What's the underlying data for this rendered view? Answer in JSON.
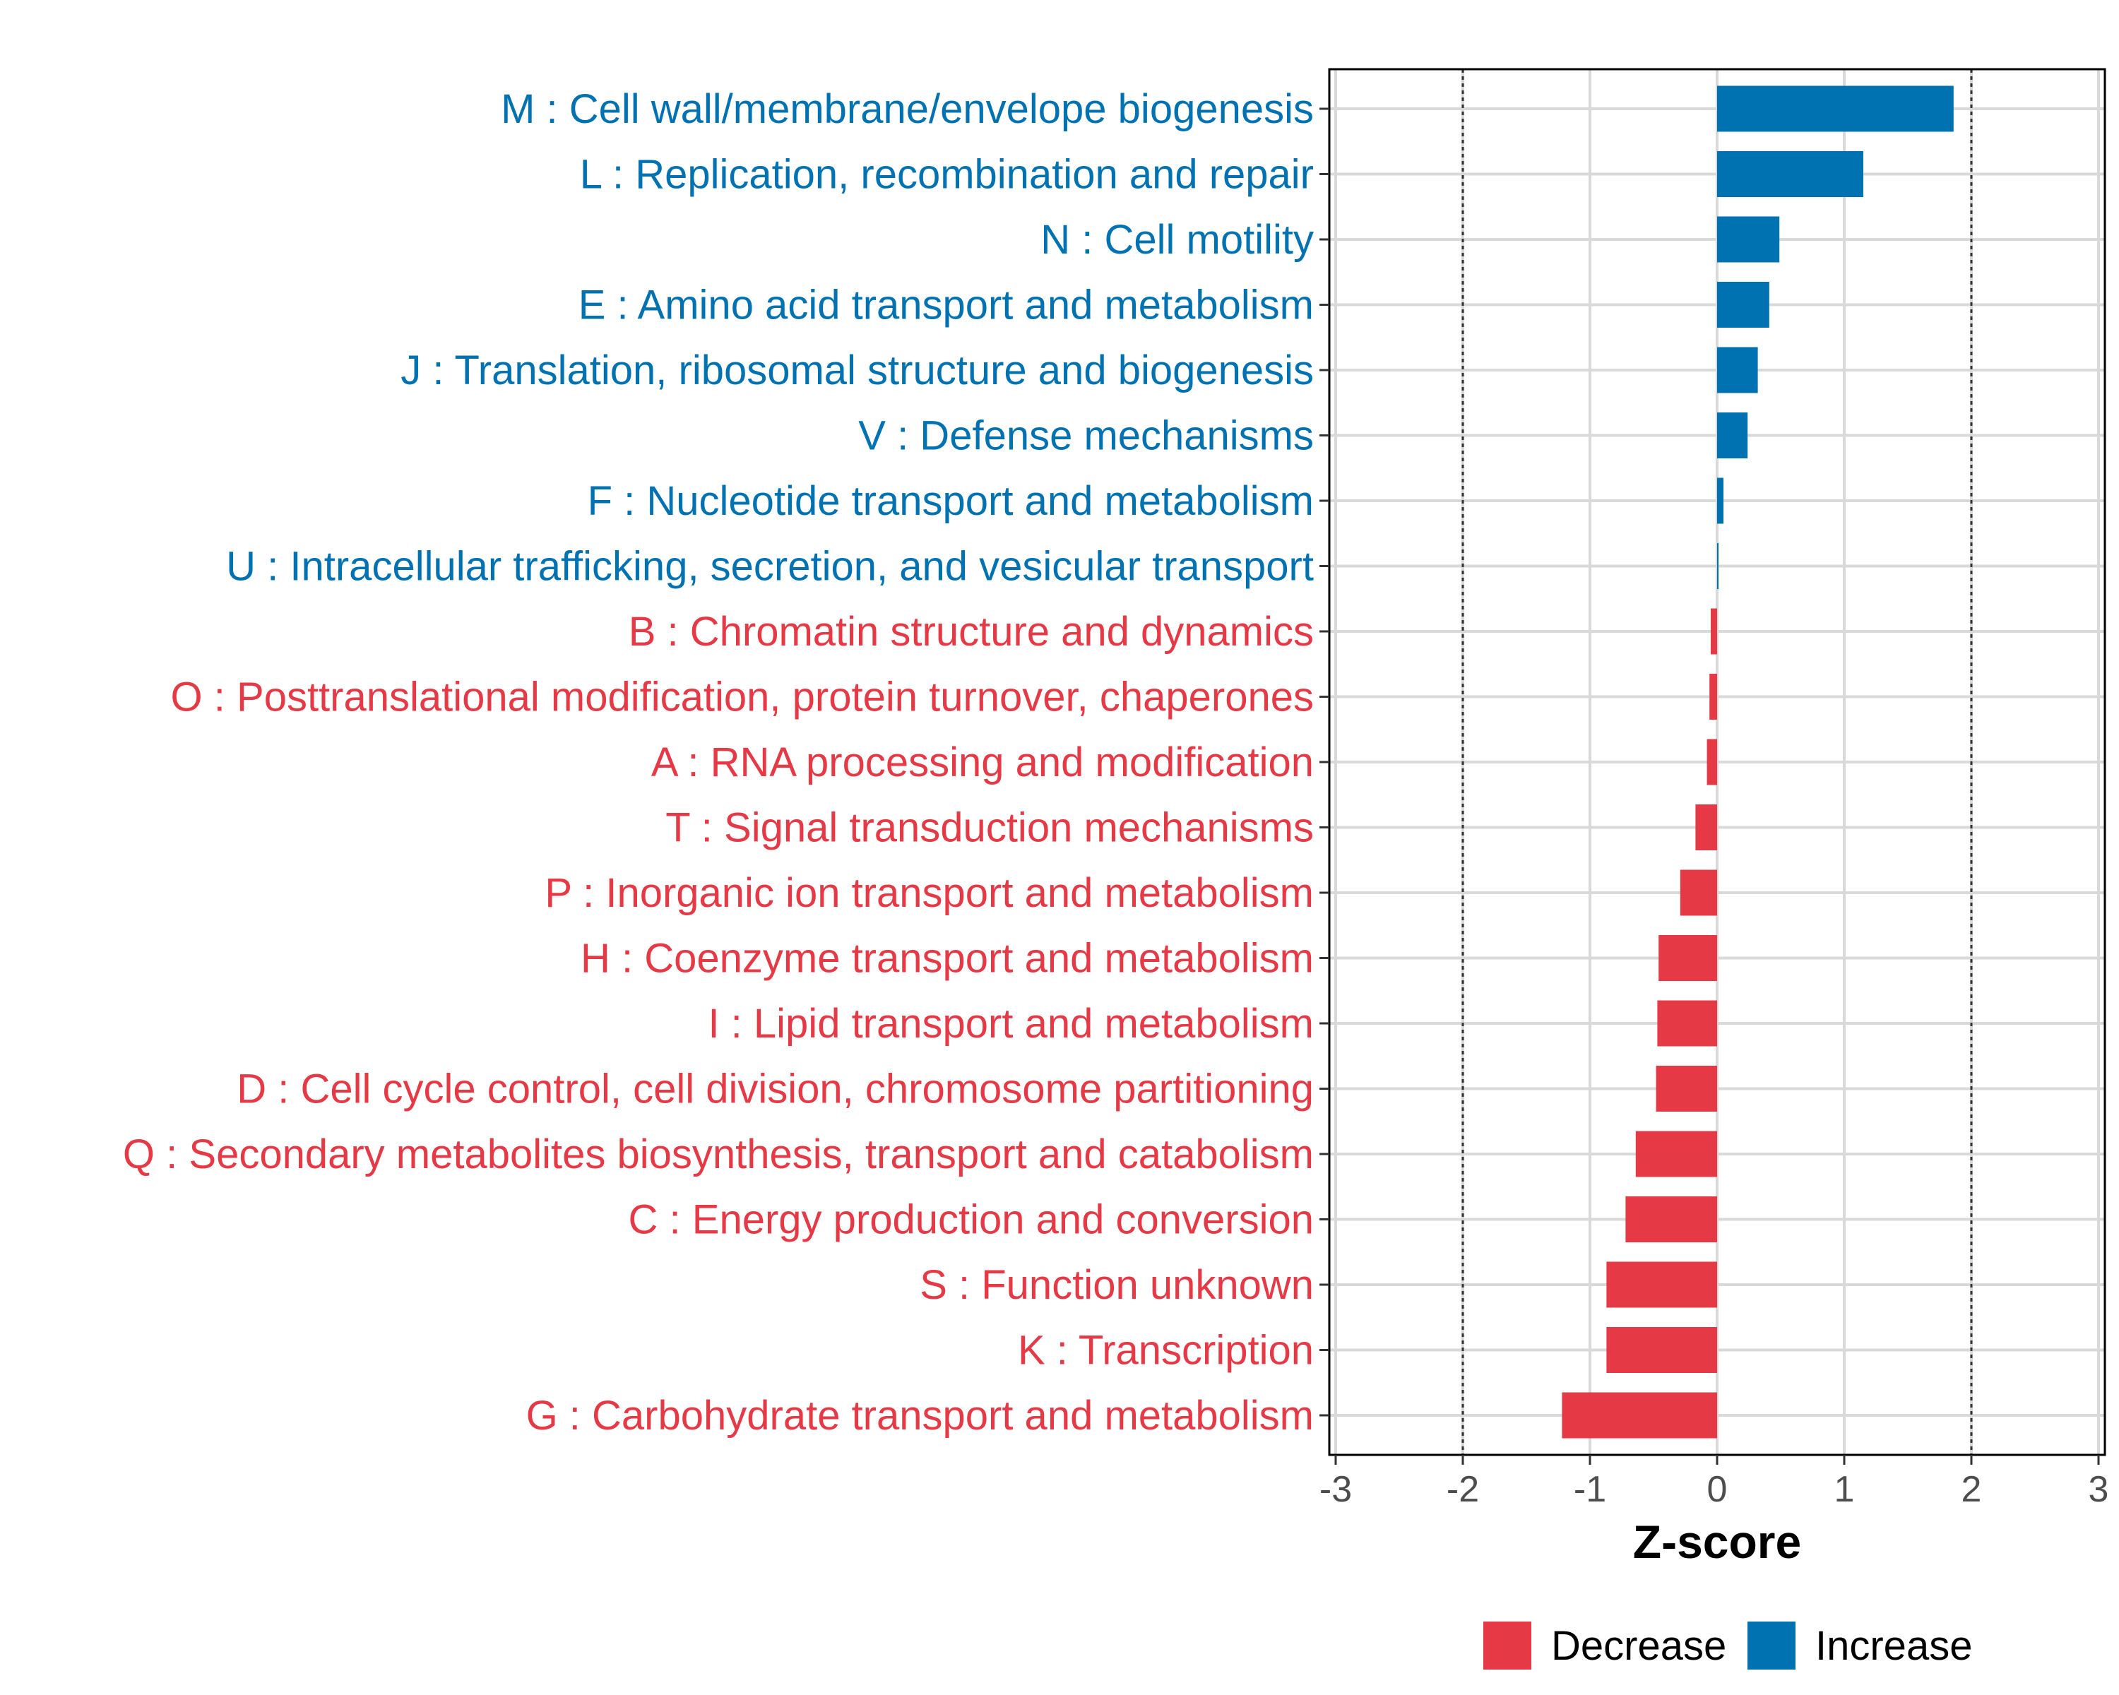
{
  "chart_data": {
    "type": "bar",
    "orientation": "horizontal",
    "xlabel": "Z-score",
    "xlim": [
      -3.05,
      3.05
    ],
    "xticks": [
      -3,
      -2,
      -1,
      0,
      1,
      2,
      3
    ],
    "reference_lines": [
      -2,
      2
    ],
    "categories": [
      "M : Cell wall/membrane/envelope biogenesis",
      "L : Replication, recombination and repair",
      "N : Cell motility",
      "E : Amino acid transport and metabolism",
      "J : Translation, ribosomal structure and biogenesis",
      "V : Defense mechanisms",
      "F : Nucleotide transport and metabolism",
      "U : Intracellular trafficking, secretion, and vesicular transport",
      "B : Chromatin structure and dynamics",
      "O : Posttranslational modification, protein turnover, chaperones",
      "A : RNA processing and modification",
      "T : Signal transduction mechanisms",
      "P : Inorganic ion transport and metabolism",
      "H : Coenzyme transport and metabolism",
      "I : Lipid transport and metabolism",
      "D : Cell cycle control, cell division, chromosome partitioning",
      "Q : Secondary metabolites biosynthesis, transport and catabolism",
      "C : Energy production and conversion",
      "S : Function unknown",
      "K : Transcription",
      "G : Carbohydrate transport and metabolism"
    ],
    "values": [
      1.86,
      1.15,
      0.49,
      0.41,
      0.32,
      0.24,
      0.05,
      0.01,
      -0.05,
      -0.06,
      -0.08,
      -0.17,
      -0.29,
      -0.46,
      -0.47,
      -0.48,
      -0.64,
      -0.72,
      -0.87,
      -0.87,
      -1.22
    ],
    "groups": [
      "Increase",
      "Increase",
      "Increase",
      "Increase",
      "Increase",
      "Increase",
      "Increase",
      "Increase",
      "Decrease",
      "Decrease",
      "Decrease",
      "Decrease",
      "Decrease",
      "Decrease",
      "Decrease",
      "Decrease",
      "Decrease",
      "Decrease",
      "Decrease",
      "Decrease",
      "Decrease"
    ],
    "legend": [
      {
        "name": "Decrease",
        "color": "#E63946"
      },
      {
        "name": "Increase",
        "color": "#0072B2"
      }
    ],
    "legend_position": "bottom"
  }
}
